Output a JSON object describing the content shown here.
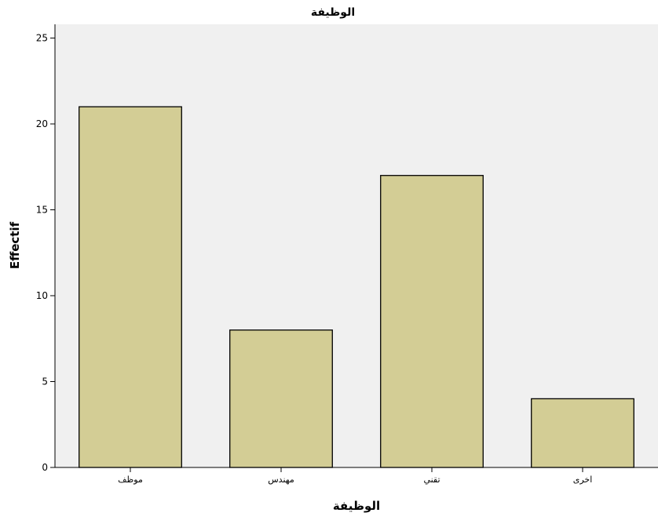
{
  "chart_data": {
    "type": "bar",
    "title": "الوظيفة",
    "xlabel": "الوظيفة",
    "ylabel": "Effectif",
    "categories": [
      "موظف",
      "مهندس",
      "تقني",
      "اخرى"
    ],
    "values": [
      21,
      8,
      17,
      4
    ],
    "ylim": [
      0,
      25.8
    ],
    "yticks": [
      0,
      5,
      10,
      15,
      20,
      25
    ],
    "grid": false,
    "legend": "none",
    "colors": {
      "bar_fill": "#d3cd95",
      "bar_stroke": "#000000",
      "plot_background": "#f0f0f0",
      "page_background": "#ffffff"
    }
  }
}
